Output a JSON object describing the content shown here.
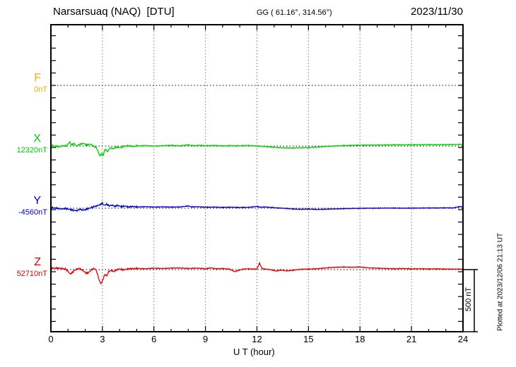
{
  "header": {
    "station_title": "Narsarsuaq (NAQ)  [DTU]",
    "gg_coords": "GG ( 61.16°, 314.56°)",
    "date": "2023/11/30"
  },
  "axis": {
    "x_label": "U T (hour)",
    "x_ticks": [
      "0",
      "3",
      "6",
      "9",
      "12",
      "15",
      "18",
      "21",
      "24"
    ],
    "x_tick_hours": [
      0,
      3,
      6,
      9,
      12,
      15,
      18,
      21,
      24
    ],
    "grid_hours": [
      3,
      6,
      9,
      12,
      15,
      18,
      21
    ],
    "x_range": [
      0,
      24
    ]
  },
  "scale_bar": {
    "label": "500 nT",
    "nT": 500
  },
  "footer_note": "Plotted at 2023/12/06 21:13 UT",
  "colors": {
    "F": "#FFA500",
    "X": "#00CC00",
    "Y": "#0000CC",
    "Z": "#DD0000",
    "grid": "#777777",
    "baseline": "#000000",
    "frame": "#000000"
  },
  "chart_data": {
    "type": "line",
    "title": "Narsarsuaq (NAQ) [DTU] magnetogram for 2023/11/30",
    "xlabel": "U T (hour)",
    "x_range_hours": [
      0,
      24
    ],
    "y_tick_spacing_nT": 100,
    "scale_bar_nT": 500,
    "legend_position": "left",
    "grid": "vertical dotted every 3 hours; dotted horizontal baseline per component",
    "series": [
      {
        "id": "F",
        "label": "F",
        "baseline_label": "0nT",
        "baseline_nT": 0,
        "color": "#FFA500",
        "plotted": false,
        "points": []
      },
      {
        "id": "X",
        "label": "X",
        "baseline_label": "12320nT",
        "baseline_nT": 12320,
        "color": "#00CC00",
        "plotted": true,
        "points": [
          [
            0,
            5
          ],
          [
            0.2,
            0
          ],
          [
            0.5,
            -5
          ],
          [
            0.7,
            3
          ],
          [
            0.9,
            0
          ],
          [
            1.1,
            34
          ],
          [
            1.2,
            10
          ],
          [
            1.35,
            20
          ],
          [
            1.5,
            0
          ],
          [
            1.7,
            15
          ],
          [
            1.9,
            22
          ],
          [
            2.1,
            8
          ],
          [
            2.3,
            17
          ],
          [
            2.5,
            -3
          ],
          [
            2.65,
            -12
          ],
          [
            2.75,
            -45
          ],
          [
            2.85,
            -80
          ],
          [
            2.95,
            -60
          ],
          [
            3.05,
            -75
          ],
          [
            3.15,
            -25
          ],
          [
            3.3,
            -45
          ],
          [
            3.45,
            -12
          ],
          [
            3.6,
            -22
          ],
          [
            3.8,
            -8
          ],
          [
            4,
            -14
          ],
          [
            4.2,
            -3
          ],
          [
            4.5,
            3
          ],
          [
            4.8,
            -3
          ],
          [
            5,
            2
          ],
          [
            5.5,
            4
          ],
          [
            6,
            0
          ],
          [
            6.5,
            3
          ],
          [
            7,
            6
          ],
          [
            7.5,
            2
          ],
          [
            8,
            10
          ],
          [
            8.3,
            3
          ],
          [
            8.7,
            6
          ],
          [
            9,
            3
          ],
          [
            9.5,
            5
          ],
          [
            10,
            2
          ],
          [
            10.5,
            4
          ],
          [
            11,
            2
          ],
          [
            11.5,
            5
          ],
          [
            12,
            1
          ],
          [
            12.5,
            -4
          ],
          [
            13,
            -10
          ],
          [
            13.5,
            -14
          ],
          [
            14,
            -16
          ],
          [
            14.5,
            -14
          ],
          [
            15,
            -12
          ],
          [
            15.5,
            -8
          ],
          [
            16,
            -3
          ],
          [
            16.5,
            1
          ],
          [
            17,
            4
          ],
          [
            17.5,
            6
          ],
          [
            18,
            7
          ],
          [
            18.5,
            8
          ],
          [
            19,
            8
          ],
          [
            19.5,
            9
          ],
          [
            20,
            10
          ],
          [
            20.5,
            10
          ],
          [
            21,
            11
          ],
          [
            21.5,
            11
          ],
          [
            22,
            12
          ],
          [
            22.5,
            11
          ],
          [
            23,
            12
          ],
          [
            23.5,
            13
          ],
          [
            24,
            14
          ]
        ]
      },
      {
        "id": "Y",
        "label": "Y",
        "baseline_label": "-4560nT",
        "baseline_nT": -4560,
        "color": "#0000CC",
        "plotted": true,
        "points": [
          [
            0,
            4
          ],
          [
            0.3,
            1
          ],
          [
            0.6,
            -6
          ],
          [
            0.9,
            -3
          ],
          [
            1.1,
            -10
          ],
          [
            1.3,
            -16
          ],
          [
            1.5,
            -20
          ],
          [
            1.7,
            -8
          ],
          [
            1.9,
            -16
          ],
          [
            2.1,
            -6
          ],
          [
            2.3,
            2
          ],
          [
            2.5,
            12
          ],
          [
            2.7,
            20
          ],
          [
            2.85,
            28
          ],
          [
            3,
            40
          ],
          [
            3.1,
            22
          ],
          [
            3.25,
            32
          ],
          [
            3.4,
            18
          ],
          [
            3.55,
            25
          ],
          [
            3.7,
            15
          ],
          [
            3.9,
            22
          ],
          [
            4.1,
            12
          ],
          [
            4.3,
            18
          ],
          [
            4.5,
            10
          ],
          [
            4.8,
            14
          ],
          [
            5,
            10
          ],
          [
            5.5,
            12
          ],
          [
            6,
            9
          ],
          [
            6.5,
            11
          ],
          [
            7,
            9
          ],
          [
            7.5,
            10
          ],
          [
            8,
            18
          ],
          [
            8.2,
            10
          ],
          [
            8.5,
            12
          ],
          [
            9,
            8
          ],
          [
            9.5,
            9
          ],
          [
            10,
            7
          ],
          [
            10.5,
            8
          ],
          [
            11,
            6
          ],
          [
            11.5,
            7
          ],
          [
            12,
            14
          ],
          [
            12.2,
            8
          ],
          [
            12.5,
            10
          ],
          [
            13,
            4
          ],
          [
            13.5,
            0
          ],
          [
            14,
            -5
          ],
          [
            14.5,
            -9
          ],
          [
            15,
            -7
          ],
          [
            15.5,
            -10
          ],
          [
            16,
            -8
          ],
          [
            16.5,
            -6
          ],
          [
            17,
            -4
          ],
          [
            17.5,
            -2
          ],
          [
            18,
            -1
          ],
          [
            18.5,
            0
          ],
          [
            19,
            0
          ],
          [
            19.5,
            1
          ],
          [
            20,
            1
          ],
          [
            20.5,
            0
          ],
          [
            21,
            1
          ],
          [
            21.5,
            1
          ],
          [
            22,
            2
          ],
          [
            22.5,
            2
          ],
          [
            23,
            3
          ],
          [
            23.4,
            2
          ],
          [
            23.7,
            10
          ],
          [
            23.9,
            14
          ],
          [
            24,
            8
          ]
        ]
      },
      {
        "id": "Z",
        "label": "Z",
        "baseline_label": "52710nT",
        "baseline_nT": 52710,
        "color": "#DD0000",
        "plotted": true,
        "points": [
          [
            0,
            10
          ],
          [
            0.3,
            12
          ],
          [
            0.6,
            10
          ],
          [
            0.85,
            4
          ],
          [
            1,
            -12
          ],
          [
            1.1,
            -35
          ],
          [
            1.2,
            -28
          ],
          [
            1.35,
            -10
          ],
          [
            1.5,
            5
          ],
          [
            1.65,
            8
          ],
          [
            1.8,
            0
          ],
          [
            1.95,
            -18
          ],
          [
            2.1,
            -30
          ],
          [
            2.25,
            -18
          ],
          [
            2.4,
            3
          ],
          [
            2.55,
            8
          ],
          [
            2.65,
            -8
          ],
          [
            2.75,
            -55
          ],
          [
            2.85,
            -100
          ],
          [
            2.95,
            -112
          ],
          [
            3.05,
            -70
          ],
          [
            3.15,
            -38
          ],
          [
            3.25,
            -52
          ],
          [
            3.35,
            -20
          ],
          [
            3.5,
            -6
          ],
          [
            3.65,
            -16
          ],
          [
            3.8,
            -4
          ],
          [
            4,
            4
          ],
          [
            4.2,
            -2
          ],
          [
            4.5,
            6
          ],
          [
            4.8,
            8
          ],
          [
            5,
            9
          ],
          [
            5.5,
            7
          ],
          [
            6,
            11
          ],
          [
            6.5,
            9
          ],
          [
            7,
            12
          ],
          [
            7.5,
            13
          ],
          [
            8,
            9
          ],
          [
            8.5,
            12
          ],
          [
            9,
            7
          ],
          [
            9.3,
            14
          ],
          [
            9.6,
            7
          ],
          [
            10,
            9
          ],
          [
            10.4,
            4
          ],
          [
            10.7,
            -16
          ],
          [
            10.9,
            -8
          ],
          [
            11.2,
            4
          ],
          [
            11.5,
            7
          ],
          [
            11.8,
            4
          ],
          [
            12,
            6
          ],
          [
            12.15,
            52
          ],
          [
            12.3,
            8
          ],
          [
            12.5,
            4
          ],
          [
            12.8,
            0
          ],
          [
            13.1,
            -12
          ],
          [
            13.4,
            -4
          ],
          [
            13.7,
            -10
          ],
          [
            14,
            -8
          ],
          [
            14.3,
            -1
          ],
          [
            14.6,
            3
          ],
          [
            15,
            4
          ],
          [
            15.5,
            7
          ],
          [
            16,
            13
          ],
          [
            16.5,
            18
          ],
          [
            17,
            21
          ],
          [
            17.5,
            19
          ],
          [
            18,
            21
          ],
          [
            18.5,
            14
          ],
          [
            19,
            11
          ],
          [
            19.5,
            9
          ],
          [
            20,
            7
          ],
          [
            20.5,
            9
          ],
          [
            21,
            6
          ],
          [
            21.5,
            7
          ],
          [
            22,
            5
          ],
          [
            22.5,
            6
          ],
          [
            23,
            4
          ],
          [
            23.5,
            4
          ],
          [
            24,
            3
          ]
        ]
      }
    ]
  }
}
